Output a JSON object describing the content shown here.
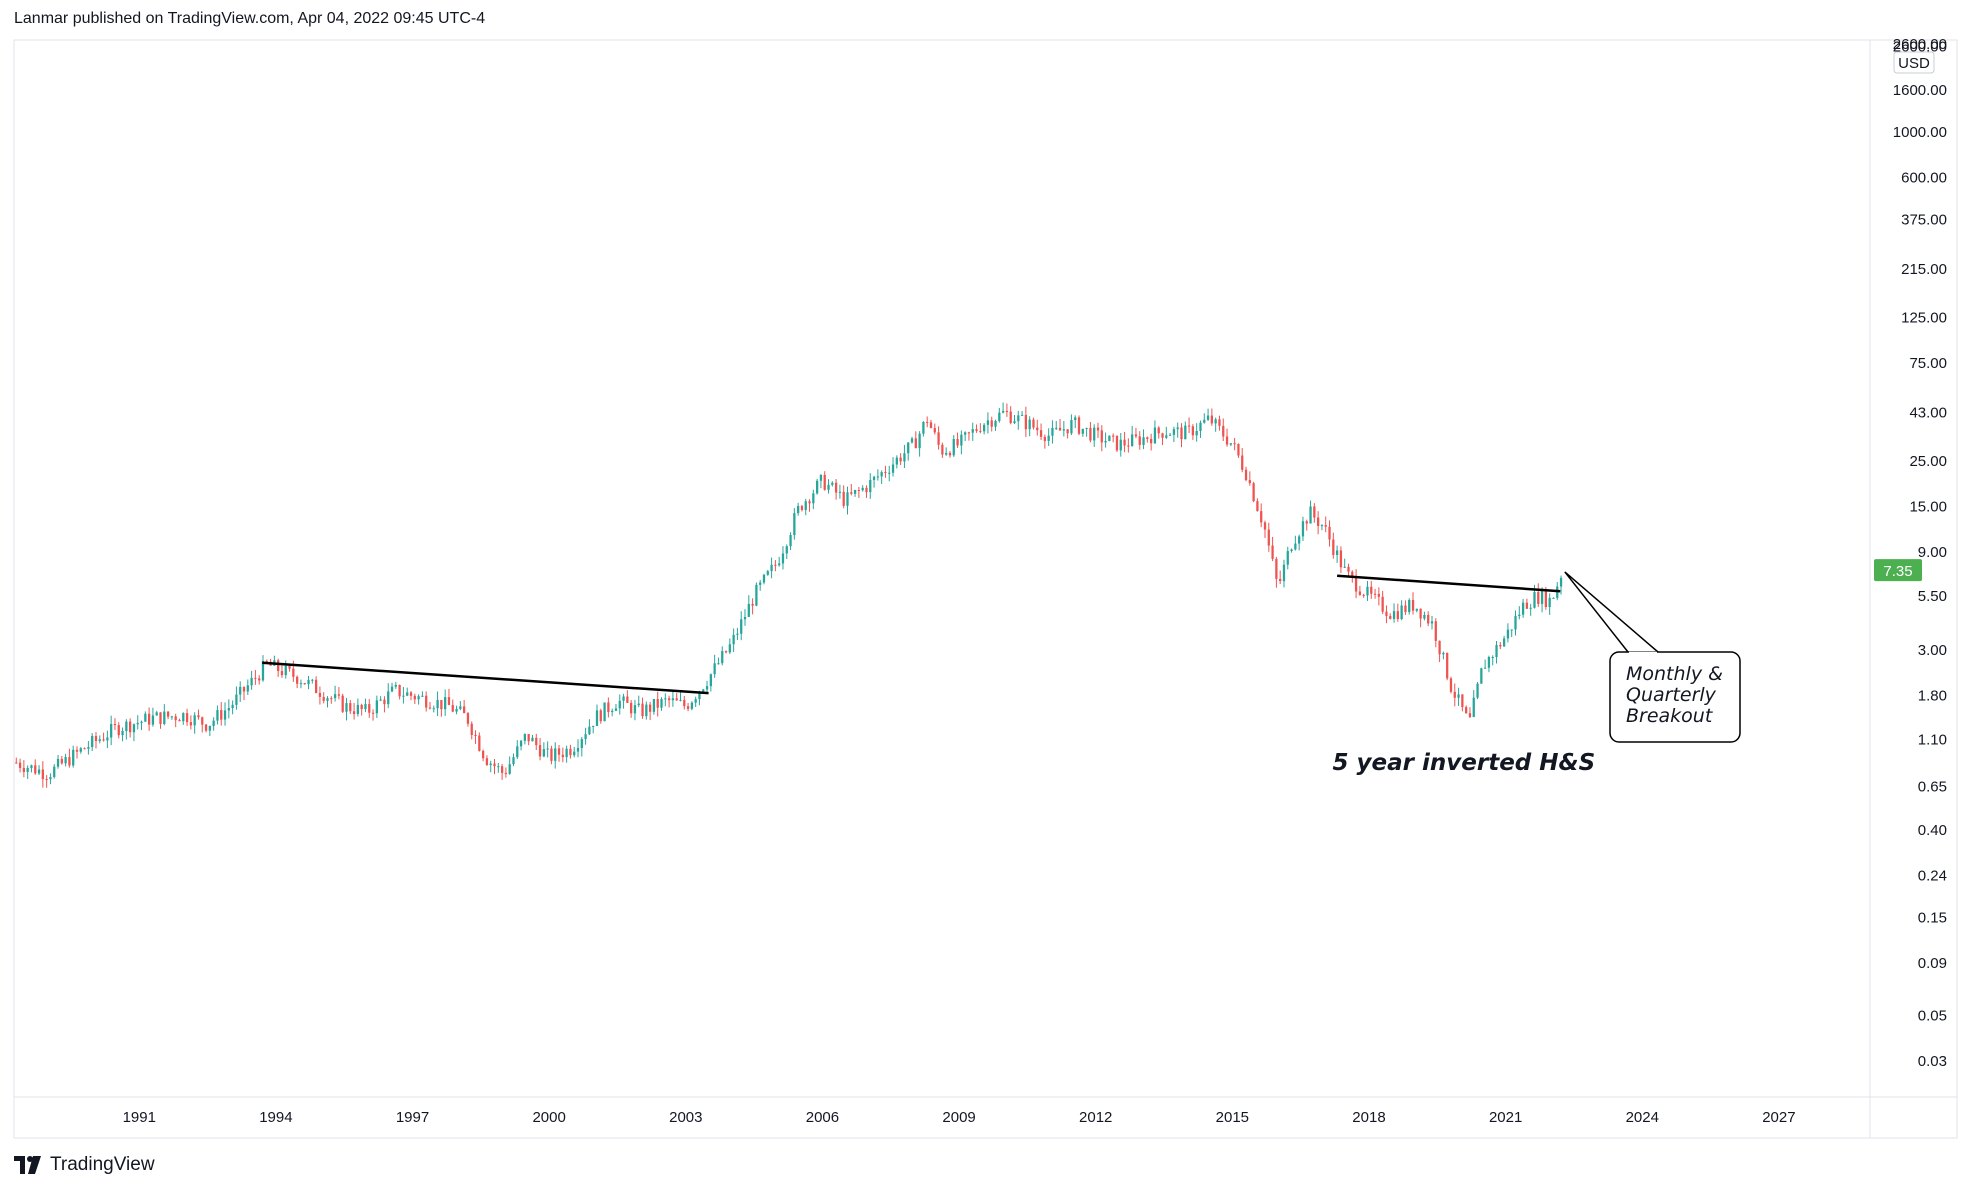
{
  "header": {
    "text": "Lanmar published on TradingView.com, Apr 04, 2022 09:45 UTC-4"
  },
  "footer": {
    "brand": "TradingView"
  },
  "colors": {
    "up": "#26a69a",
    "down": "#ef5350",
    "line": "#000000",
    "price_badge": "#4caf50",
    "axis": "#e0e3eb"
  },
  "chart_data": {
    "type": "candlestick",
    "scale": "log",
    "currency": "USD",
    "last_price": 7.35,
    "xlim": [
      1988.25,
      2029
    ],
    "ylim": [
      0.02,
      2800
    ],
    "x_ticks": [
      "1991",
      "1994",
      "1997",
      "2000",
      "2003",
      "2006",
      "2009",
      "2012",
      "2015",
      "2018",
      "2021",
      "2024",
      "2027"
    ],
    "y_ticks": [
      "2600.00",
      "1600.00",
      "1000.00",
      "600.00",
      "375.00",
      "215.00",
      "125.00",
      "75.00",
      "43.00",
      "25.00",
      "15.00",
      "9.00",
      "5.50",
      "3.00",
      "1.80",
      "1.10",
      "0.65",
      "0.40",
      "0.24",
      "0.15",
      "0.09",
      "0.05",
      "0.03"
    ],
    "price_path": [
      [
        1988.3,
        0.85
      ],
      [
        1989,
        0.75
      ],
      [
        1989.8,
        1.0
      ],
      [
        1990.5,
        1.25
      ],
      [
        1991.3,
        1.4
      ],
      [
        1992,
        1.45
      ],
      [
        1992.5,
        1.3
      ],
      [
        1993,
        1.6
      ],
      [
        1993.8,
        2.55
      ],
      [
        1994.5,
        2.2
      ],
      [
        1995.5,
        1.6
      ],
      [
        1996,
        1.5
      ],
      [
        1996.6,
        1.9
      ],
      [
        1997.2,
        1.75
      ],
      [
        1997.8,
        1.6
      ],
      [
        1998.2,
        1.4
      ],
      [
        1998.6,
        0.9
      ],
      [
        1999,
        0.75
      ],
      [
        1999.5,
        1.15
      ],
      [
        2000,
        0.9
      ],
      [
        2000.5,
        1.0
      ],
      [
        2001,
        1.4
      ],
      [
        2001.5,
        1.7
      ],
      [
        2002,
        1.5
      ],
      [
        2002.6,
        1.7
      ],
      [
        2003,
        1.6
      ],
      [
        2003.5,
        2.2
      ],
      [
        2004,
        3.2
      ],
      [
        2004.5,
        5.5
      ],
      [
        2005,
        8.0
      ],
      [
        2005.5,
        15.0
      ],
      [
        2006,
        20.0
      ],
      [
        2006.5,
        16.0
      ],
      [
        2007,
        19.0
      ],
      [
        2007.6,
        25.0
      ],
      [
        2008,
        30.0
      ],
      [
        2008.3,
        40.0
      ],
      [
        2008.6,
        28.0
      ],
      [
        2009,
        30.0
      ],
      [
        2009.5,
        38.0
      ],
      [
        2010,
        43.0
      ],
      [
        2010.5,
        38.0
      ],
      [
        2011,
        33.0
      ],
      [
        2011.5,
        38.0
      ],
      [
        2012,
        33.0
      ],
      [
        2012.5,
        30.0
      ],
      [
        2013,
        32.0
      ],
      [
        2013.5,
        35.0
      ],
      [
        2014,
        34.0
      ],
      [
        2014.5,
        40.0
      ],
      [
        2015,
        30.0
      ],
      [
        2015.3,
        22.0
      ],
      [
        2015.7,
        12.0
      ],
      [
        2016,
        6.0
      ],
      [
        2016.3,
        10.0
      ],
      [
        2016.7,
        14.0
      ],
      [
        2017,
        12.0
      ],
      [
        2017.5,
        7.0
      ],
      [
        2018,
        5.5
      ],
      [
        2018.5,
        4.5
      ],
      [
        2019,
        5.0
      ],
      [
        2019.4,
        4.0
      ],
      [
        2019.8,
        2.0
      ],
      [
        2020.2,
        1.3
      ],
      [
        2020.5,
        2.5
      ],
      [
        2021,
        3.5
      ],
      [
        2021.4,
        5.0
      ],
      [
        2021.7,
        5.5
      ],
      [
        2022,
        5.2
      ],
      [
        2022.25,
        7.35
      ]
    ],
    "trendlines": [
      {
        "x1": 1993.7,
        "y1": 2.6,
        "x2": 2003.5,
        "y2": 1.85
      },
      {
        "x1": 2017.3,
        "y1": 6.9,
        "x2": 2022.2,
        "y2": 5.8
      }
    ],
    "annotations": [
      {
        "text": "5 year inverted H&S",
        "x": 2017.2,
        "y": 0.78
      },
      {
        "lines": [
          "Monthly &",
          "Quarterly",
          "Breakout"
        ],
        "callout_to": [
          2022.3,
          7.2
        ]
      }
    ]
  }
}
